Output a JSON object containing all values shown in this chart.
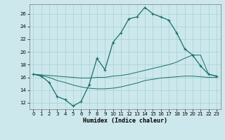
{
  "xlabel": "Humidex (Indice chaleur)",
  "bg_color": "#cce8ec",
  "grid_color": "#aad4d8",
  "line_color": "#1a6e6a",
  "xlim": [
    -0.5,
    23.5
  ],
  "ylim": [
    11.0,
    27.5
  ],
  "xticks": [
    0,
    1,
    2,
    3,
    4,
    5,
    6,
    7,
    8,
    9,
    10,
    11,
    12,
    13,
    14,
    15,
    16,
    17,
    18,
    19,
    20,
    21,
    22,
    23
  ],
  "yticks": [
    12,
    14,
    16,
    18,
    20,
    22,
    24,
    26
  ],
  "line1_x": [
    0,
    1,
    2,
    3,
    4,
    5,
    6,
    7,
    8,
    9,
    10,
    11,
    12,
    13,
    14,
    15,
    16,
    17,
    18,
    19,
    20,
    21,
    22,
    23
  ],
  "line1_y": [
    16.5,
    16.2,
    15.2,
    13.0,
    12.5,
    11.5,
    12.2,
    14.8,
    19.0,
    17.2,
    21.5,
    23.0,
    25.2,
    25.5,
    27.0,
    26.0,
    25.5,
    25.0,
    23.0,
    20.5,
    19.5,
    17.8,
    16.5,
    16.2
  ],
  "line2_x": [
    0,
    23
  ],
  "line2_y": [
    16.5,
    16.2
  ],
  "line3_x": [
    0,
    23
  ],
  "line3_y": [
    16.5,
    16.2
  ],
  "line2_full_x": [
    0,
    1,
    2,
    3,
    4,
    5,
    6,
    7,
    8,
    9,
    10,
    11,
    12,
    13,
    14,
    15,
    16,
    17,
    18,
    19,
    20,
    21,
    22,
    23
  ],
  "line2_full_y": [
    16.5,
    16.4,
    16.3,
    16.2,
    16.1,
    16.0,
    15.9,
    15.9,
    16.0,
    16.0,
    16.2,
    16.3,
    16.5,
    16.8,
    17.1,
    17.4,
    17.7,
    18.0,
    18.4,
    19.0,
    19.5,
    19.5,
    16.5,
    16.2
  ],
  "line3_full_x": [
    0,
    1,
    2,
    3,
    4,
    5,
    6,
    7,
    8,
    9,
    10,
    11,
    12,
    13,
    14,
    15,
    16,
    17,
    18,
    19,
    20,
    21,
    22,
    23
  ],
  "line3_full_y": [
    16.5,
    16.3,
    16.0,
    15.5,
    15.2,
    14.8,
    14.5,
    14.3,
    14.2,
    14.2,
    14.3,
    14.5,
    14.8,
    15.1,
    15.5,
    15.7,
    15.9,
    16.0,
    16.1,
    16.2,
    16.2,
    16.1,
    16.0,
    16.0
  ]
}
